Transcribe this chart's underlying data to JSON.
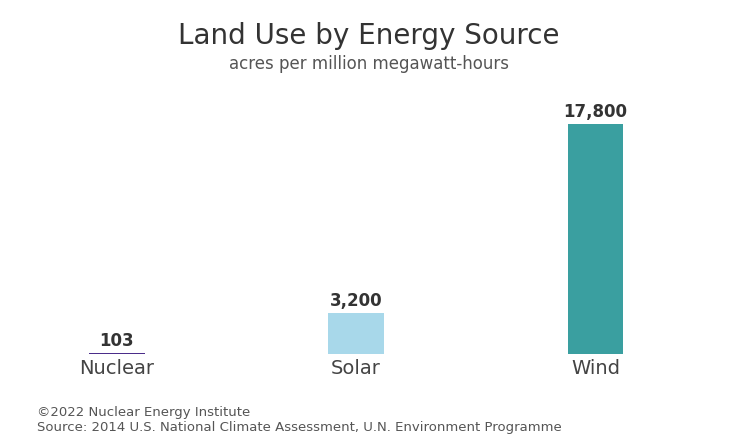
{
  "title": "Land Use by Energy Source",
  "subtitle": "acres per million megawatt-hours",
  "categories": [
    "Nuclear",
    "Solar",
    "Wind"
  ],
  "values": [
    103,
    3200,
    17800
  ],
  "labels": [
    "103",
    "3,200",
    "17,800"
  ],
  "bar_colors": [
    "#4b2d8a",
    "#a8d8ea",
    "#3a9fa0"
  ],
  "background_color": "#ffffff",
  "title_fontsize": 20,
  "subtitle_fontsize": 12,
  "xlabel_fontsize": 14,
  "label_fontsize": 12,
  "footer_text": "©2022 Nuclear Energy Institute\nSource: 2014 U.S. National Climate Assessment, U.N. Environment Programme",
  "footer_fontsize": 9.5,
  "ylim": [
    0,
    20500
  ],
  "bar_width": 0.35,
  "x_positions": [
    0.5,
    2.0,
    3.5
  ],
  "xlim": [
    0.0,
    4.3
  ]
}
